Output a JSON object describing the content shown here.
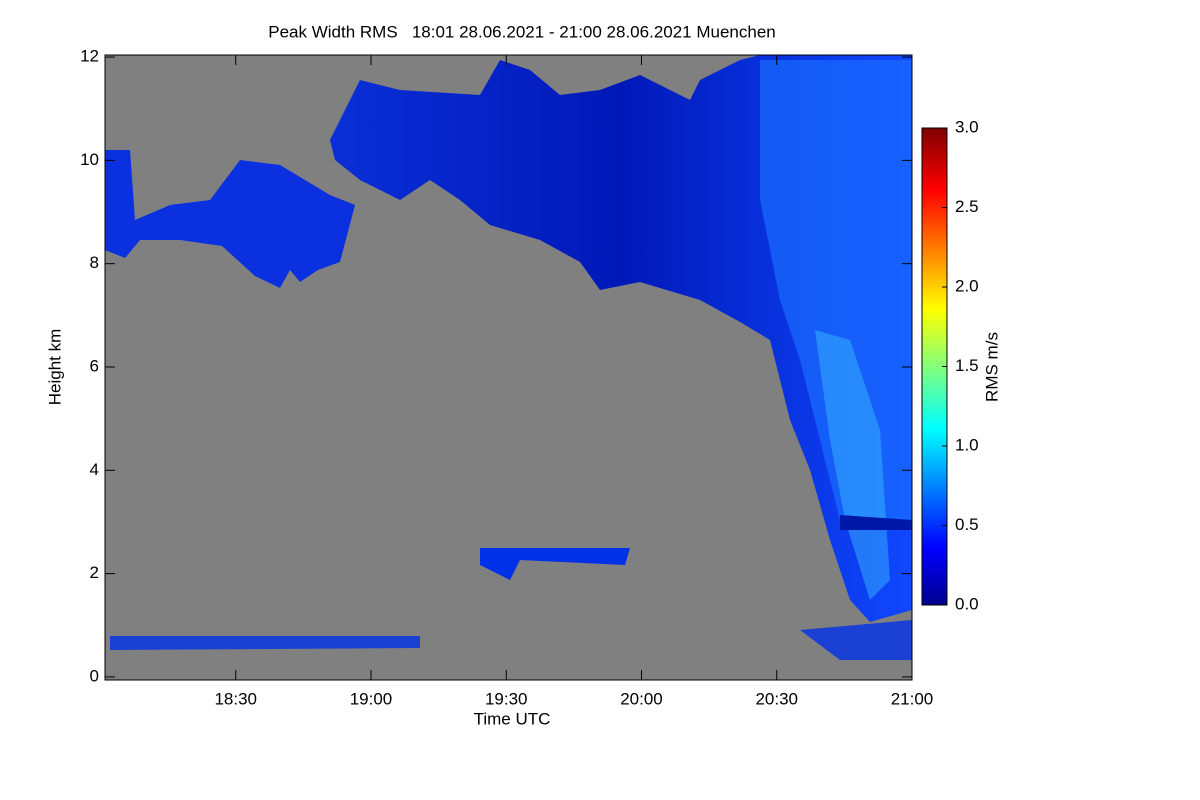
{
  "chart_data": {
    "type": "heatmap",
    "title": "Peak Width RMS   18:01 28.06.2021 - 21:00 28.06.2021 Muenchen",
    "x_label": "Time UTC",
    "y_label": "Height km",
    "colorbar_label": "RMS m/s",
    "xlim": [
      1081,
      1260
    ],
    "xticks": [
      {
        "value": 1110,
        "label": "18:30"
      },
      {
        "value": 1140,
        "label": "19:00"
      },
      {
        "value": 1170,
        "label": "19:30"
      },
      {
        "value": 1200,
        "label": "20:00"
      },
      {
        "value": 1230,
        "label": "20:30"
      },
      {
        "value": 1260,
        "label": "21:00"
      }
    ],
    "ylim": [
      -0.06,
      12.04
    ],
    "yticks": [
      0,
      2,
      4,
      6,
      8,
      10,
      12
    ],
    "clim": [
      0,
      3
    ],
    "cticks": [
      {
        "value": 0,
        "label": "0.0"
      },
      0.5,
      {
        "value": 1,
        "label": "1.0"
      },
      1.5,
      {
        "value": 2,
        "label": "2.0"
      },
      2.5,
      {
        "value": 3,
        "label": "3.0"
      }
    ]
  }
}
